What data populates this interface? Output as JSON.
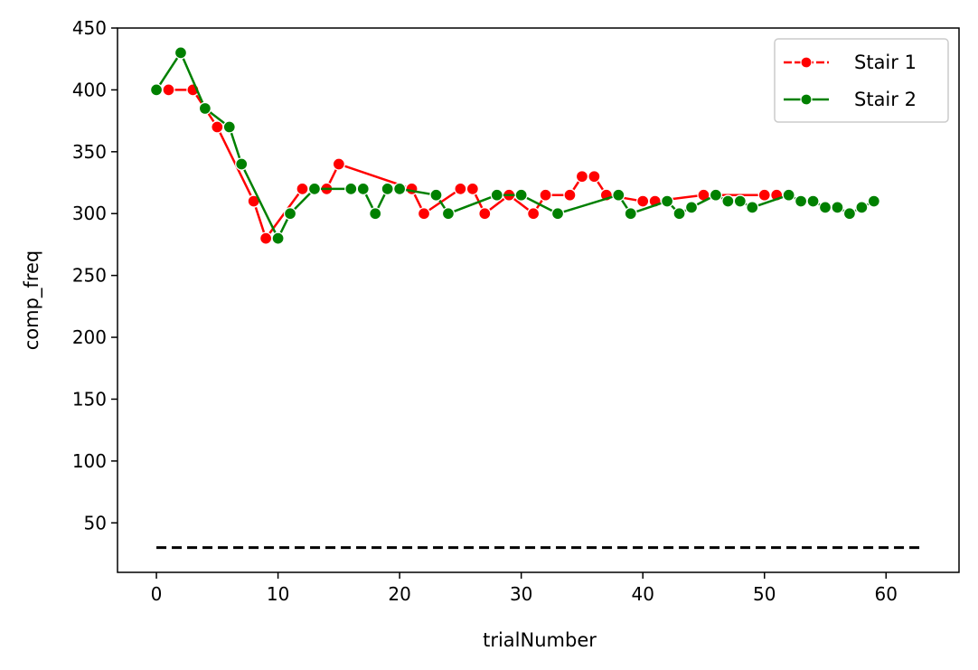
{
  "chart_data": {
    "type": "line",
    "xlabel": "trialNumber",
    "ylabel": "comp_freq",
    "xlim": [
      -3.2,
      66
    ],
    "ylim": [
      10,
      450
    ],
    "xticks": [
      0,
      10,
      20,
      30,
      40,
      50,
      60
    ],
    "yticks": [
      50,
      100,
      150,
      200,
      250,
      300,
      350,
      400,
      450
    ],
    "grid": false,
    "legend_position": "top-right",
    "series": [
      {
        "name": "Stair 1",
        "color": "#ff0000",
        "marker": "circle",
        "line_style": "solid",
        "points": [
          [
            0,
            400
          ],
          [
            1,
            400
          ],
          [
            3,
            400
          ],
          [
            5,
            370
          ],
          [
            8,
            310
          ],
          [
            9,
            280
          ],
          [
            12,
            320
          ],
          [
            14,
            320
          ],
          [
            15,
            340
          ],
          [
            21,
            320
          ],
          [
            22,
            300
          ],
          [
            25,
            320
          ],
          [
            26,
            320
          ],
          [
            27,
            300
          ],
          [
            29,
            315
          ],
          [
            31,
            300
          ],
          [
            32,
            315
          ],
          [
            34,
            315
          ],
          [
            35,
            330
          ],
          [
            36,
            330
          ],
          [
            37,
            315
          ],
          [
            40,
            310
          ],
          [
            41,
            310
          ],
          [
            45,
            315
          ],
          [
            50,
            315
          ],
          [
            51,
            315
          ]
        ]
      },
      {
        "name": "Stair 2",
        "color": "#008000",
        "marker": "circle",
        "line_style": "solid",
        "points": [
          [
            0,
            400
          ],
          [
            2,
            430
          ],
          [
            4,
            385
          ],
          [
            6,
            370
          ],
          [
            7,
            340
          ],
          [
            10,
            280
          ],
          [
            11,
            300
          ],
          [
            13,
            320
          ],
          [
            16,
            320
          ],
          [
            17,
            320
          ],
          [
            18,
            300
          ],
          [
            19,
            320
          ],
          [
            20,
            320
          ],
          [
            23,
            315
          ],
          [
            24,
            300
          ],
          [
            28,
            315
          ],
          [
            30,
            315
          ],
          [
            33,
            300
          ],
          [
            38,
            315
          ],
          [
            39,
            300
          ],
          [
            42,
            310
          ],
          [
            43,
            300
          ],
          [
            44,
            305
          ],
          [
            46,
            315
          ],
          [
            47,
            310
          ],
          [
            48,
            310
          ],
          [
            49,
            305
          ],
          [
            52,
            315
          ],
          [
            53,
            310
          ],
          [
            54,
            310
          ],
          [
            55,
            305
          ],
          [
            56,
            305
          ],
          [
            57,
            300
          ],
          [
            58,
            305
          ],
          [
            59,
            310
          ]
        ]
      },
      {
        "color": "#000000",
        "line_style": "dashed",
        "points": [
          [
            0,
            30
          ],
          [
            63,
            30
          ]
        ]
      }
    ]
  }
}
